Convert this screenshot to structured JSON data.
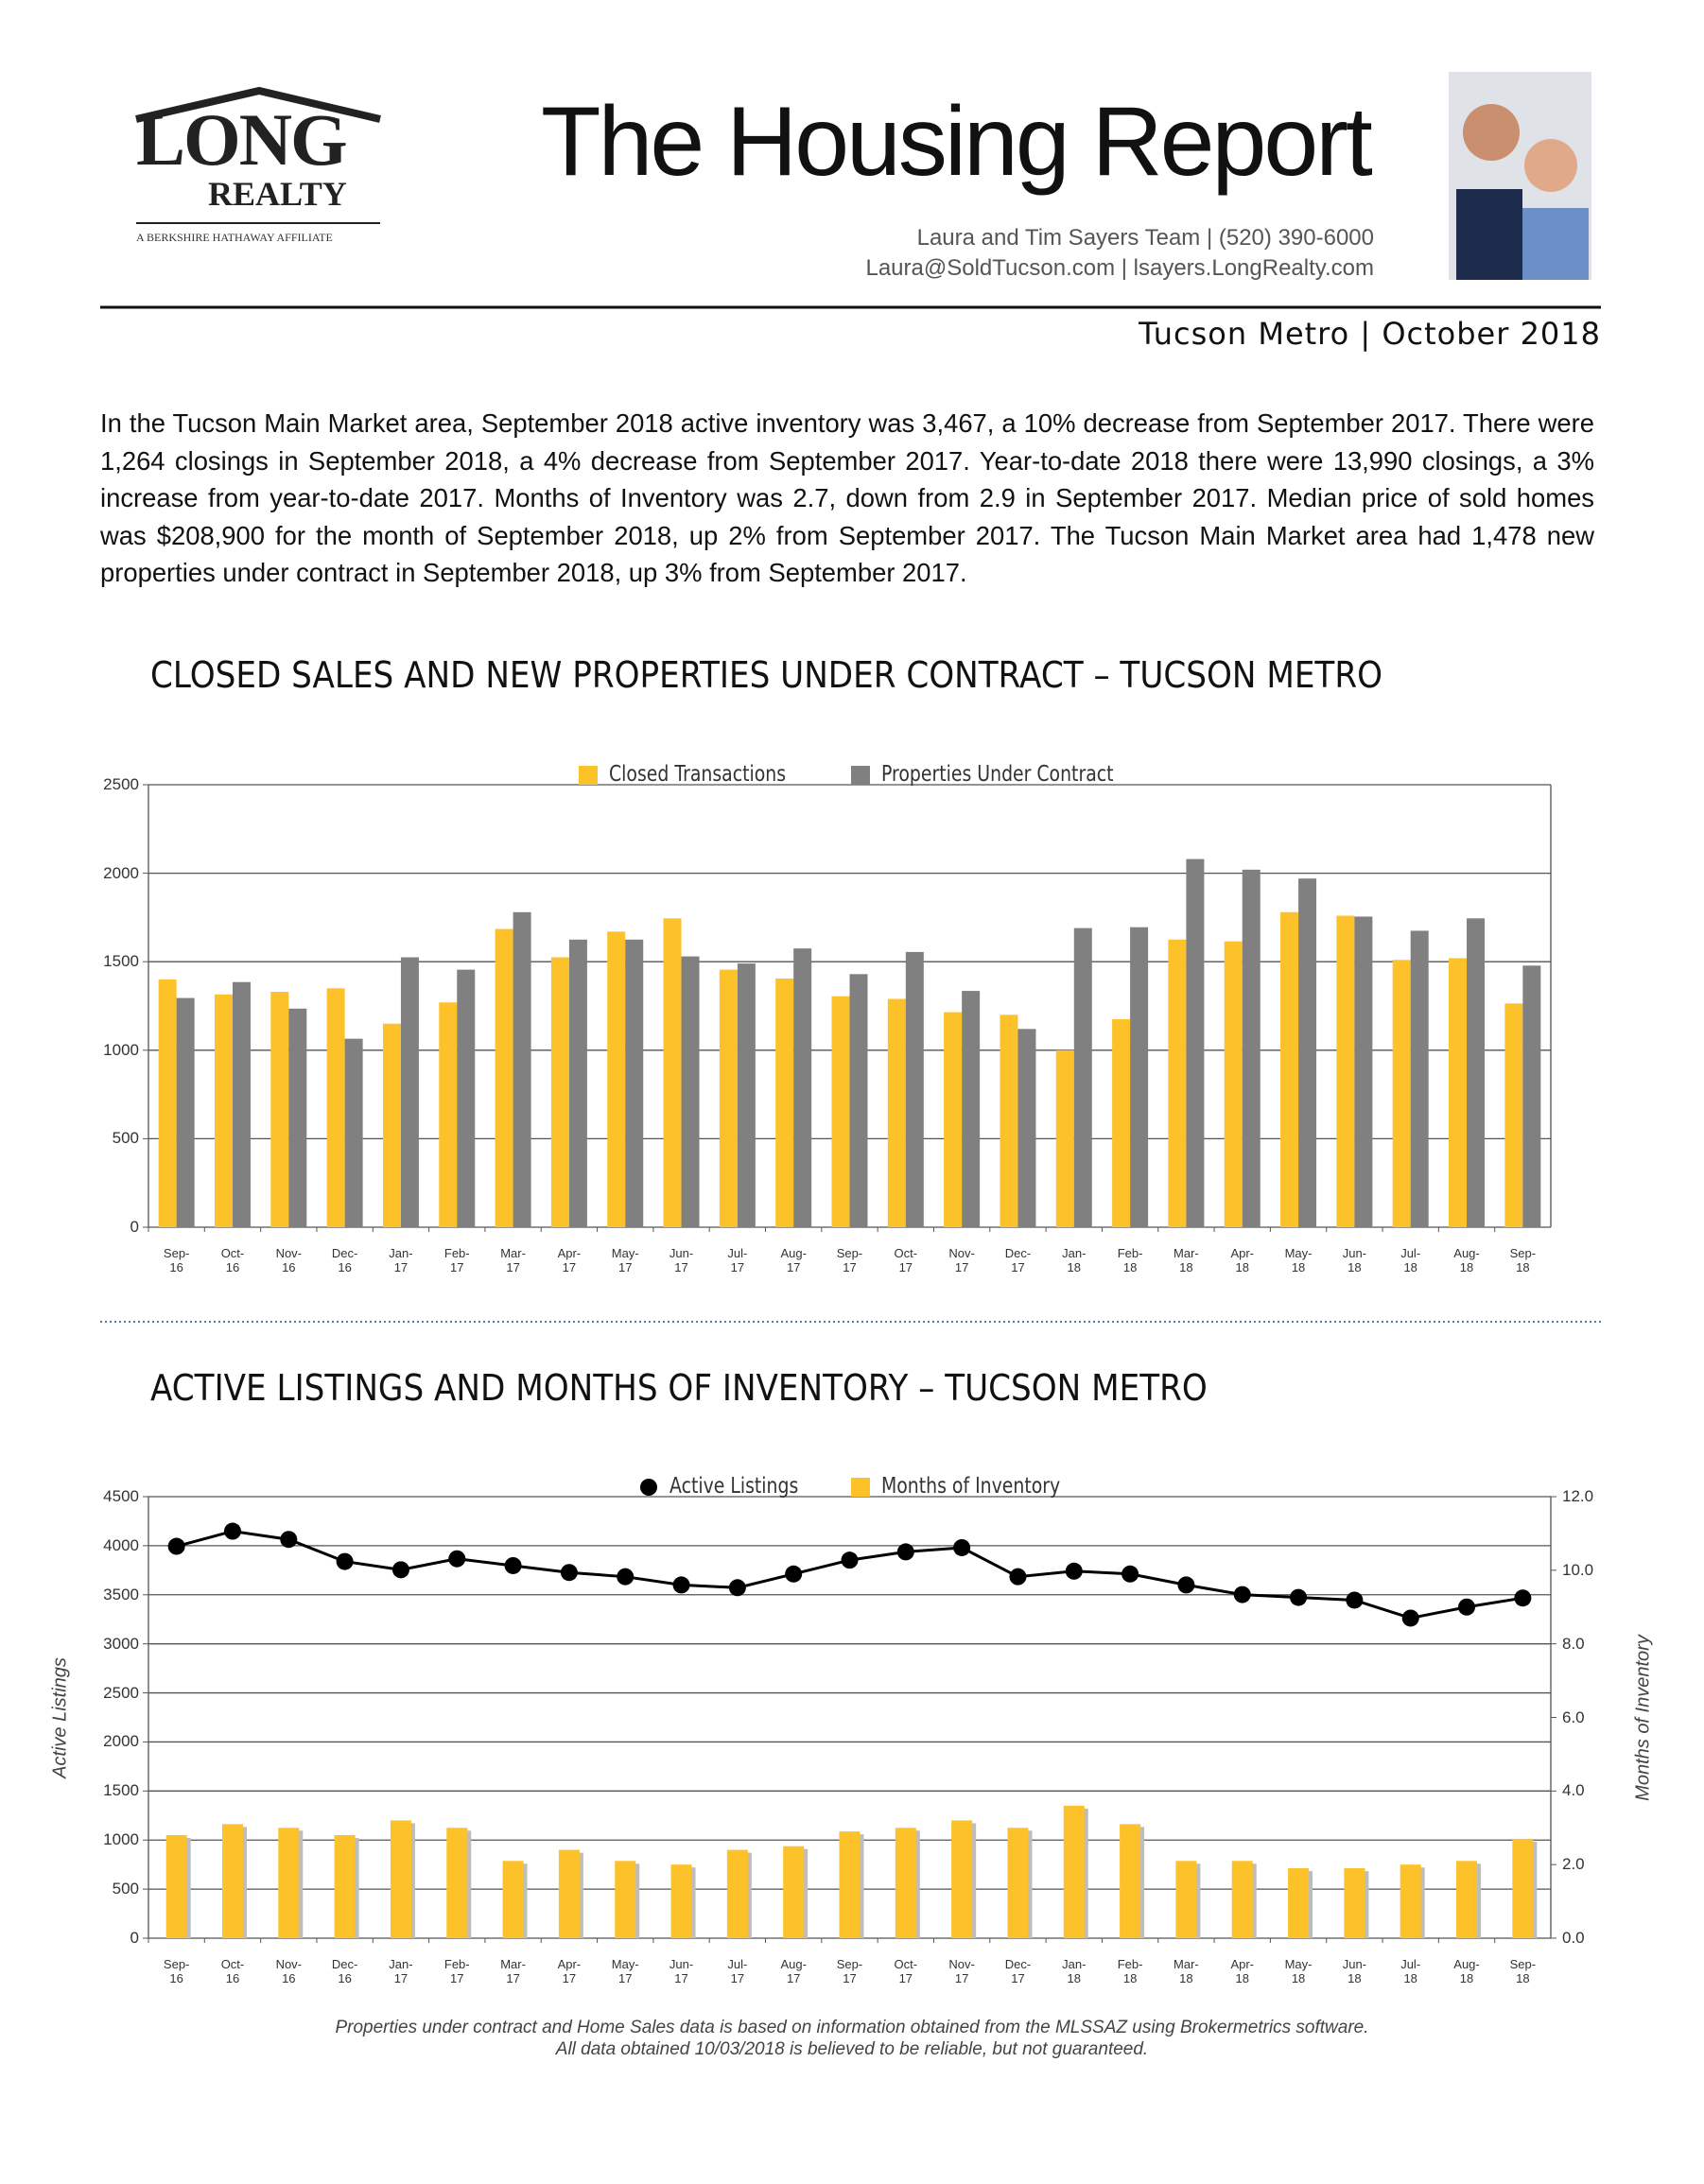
{
  "logo": {
    "name": "LONG",
    "sub": "REALTY",
    "affiliate": "A BERKSHIRE HATHAWAY AFFILIATE"
  },
  "header": {
    "title": "The Housing Report",
    "contact1": "Laura and Tim Sayers Team | (520) 390-6000",
    "contact2": "Laura@SoldTucson.com | lsayers.LongRealty.com",
    "region": "Tucson Metro | October 2018"
  },
  "summary": "In the Tucson Main Market area, September 2018 active inventory was 3,467, a 10% decrease from September 2017. There were 1,264 closings in September 2018, a 4% decrease from September 2017. Year-to-date 2018 there were 13,990 closings, a 3% increase from year-to-date 2017. Months of Inventory was 2.7, down from 2.9 in September 2017. Median price of sold homes was $208,900 for the month of September 2018, up 2% from September 2017. The Tucson Main Market area had 1,478 new properties under contract in September 2018, up 3% from September 2017.",
  "chart_data": [
    {
      "type": "bar",
      "title": "CLOSED SALES AND NEW PROPERTIES UNDER CONTRACT – TUCSON METRO",
      "categories": [
        "Sep-16",
        "Oct-16",
        "Nov-16",
        "Dec-16",
        "Jan-17",
        "Feb-17",
        "Mar-17",
        "Apr-17",
        "May-17",
        "Jun-17",
        "Jul-17",
        "Aug-17",
        "Sep-17",
        "Oct-17",
        "Nov-17",
        "Dec-17",
        "Jan-18",
        "Feb-18",
        "Mar-18",
        "Apr-18",
        "May-18",
        "Jun-18",
        "Jul-18",
        "Aug-18",
        "Sep-18"
      ],
      "series": [
        {
          "name": "Closed Transactions",
          "color": "#fdc12a",
          "values": [
            1400,
            1315,
            1330,
            1350,
            1150,
            1270,
            1685,
            1525,
            1670,
            1745,
            1455,
            1405,
            1305,
            1290,
            1215,
            1200,
            1000,
            1175,
            1625,
            1615,
            1780,
            1760,
            1510,
            1520,
            1264
          ]
        },
        {
          "name": "Properties Under Contract",
          "color": "#808080",
          "values": [
            1295,
            1385,
            1235,
            1065,
            1525,
            1455,
            1780,
            1625,
            1625,
            1530,
            1490,
            1575,
            1430,
            1555,
            1335,
            1120,
            1690,
            1695,
            2080,
            2020,
            1970,
            1755,
            1675,
            1745,
            1478
          ]
        }
      ],
      "ylim": [
        0,
        2500
      ],
      "yticks": [
        0,
        500,
        1000,
        1500,
        2000,
        2500
      ],
      "grid": true,
      "legend": "top"
    },
    {
      "type": "combo",
      "title": "ACTIVE LISTINGS AND MONTHS OF INVENTORY – TUCSON METRO",
      "categories": [
        "Sep-16",
        "Oct-16",
        "Nov-16",
        "Dec-16",
        "Jan-17",
        "Feb-17",
        "Mar-17",
        "Apr-17",
        "May-17",
        "Jun-17",
        "Jul-17",
        "Aug-17",
        "Sep-17",
        "Oct-17",
        "Nov-17",
        "Dec-17",
        "Jan-18",
        "Feb-18",
        "Mar-18",
        "Apr-18",
        "May-18",
        "Jun-18",
        "Jul-18",
        "Aug-18",
        "Sep-18"
      ],
      "series": [
        {
          "name": "Active Listings",
          "color": "#000000",
          "values": [
            3994,
            4148,
            4064,
            3839,
            3755,
            3867,
            3797,
            3727,
            3684,
            3600,
            3572,
            3712,
            3853,
            3937,
            3980,
            3684,
            3741,
            3712,
            3600,
            3502,
            3473,
            3445,
            3262,
            3375,
            3467
          ]
        },
        {
          "name": "Months of Inventory",
          "color": "#fdc12a",
          "axis": "y2",
          "values": [
            2.8,
            3.1,
            3.0,
            2.8,
            3.2,
            3.0,
            2.1,
            2.4,
            2.1,
            2.0,
            2.4,
            2.5,
            2.9,
            3.0,
            3.2,
            3.0,
            3.6,
            3.1,
            2.1,
            2.1,
            1.9,
            1.9,
            2.0,
            2.1,
            2.7
          ]
        }
      ],
      "ylabel": "Active Listings",
      "y2label": "Months of Inventory",
      "ylim": [
        0,
        4500
      ],
      "yticks": [
        0,
        500,
        1000,
        1500,
        2000,
        2500,
        3000,
        3500,
        4000,
        4500
      ],
      "y2lim": [
        0,
        12
      ],
      "y2ticks": [
        {
          "value": 0,
          "label": "0.0"
        },
        {
          "value": 2,
          "label": "2.0"
        },
        {
          "value": 4,
          "label": "4.0"
        },
        {
          "value": 6,
          "label": "6.0"
        },
        {
          "value": 8,
          "label": "8.0"
        },
        {
          "value": 10,
          "label": "10.0"
        },
        {
          "value": 12,
          "label": "12.0"
        }
      ],
      "grid": true,
      "legend": "top"
    }
  ],
  "footnote": {
    "line1": "Properties under contract and Home Sales data is based on information obtained from the MLSSAZ using Brokermetrics software.",
    "line2": "All data obtained 10/03/2018 is believed to be reliable, but not guaranteed."
  }
}
